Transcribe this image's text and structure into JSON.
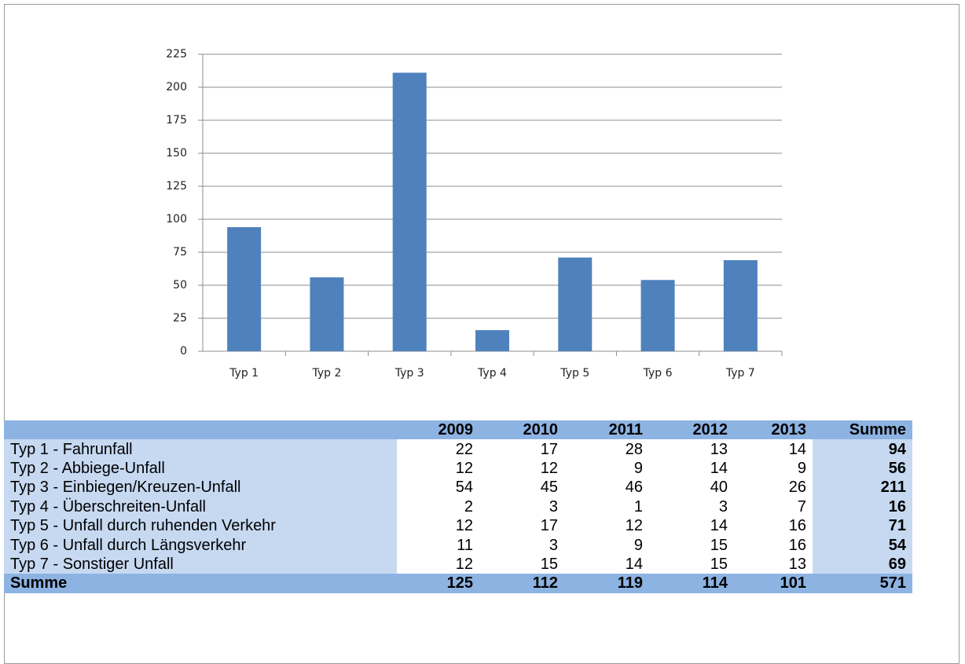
{
  "chart_data": {
    "type": "bar",
    "categories": [
      "Typ 1",
      "Typ 2",
      "Typ 3",
      "Typ 4",
      "Typ 5",
      "Typ 6",
      "Typ 7"
    ],
    "values": [
      94,
      56,
      211,
      16,
      71,
      54,
      69
    ],
    "color": "#4f81bd",
    "ylim": [
      0,
      225
    ],
    "yticks": [
      0,
      25,
      50,
      75,
      100,
      125,
      150,
      175,
      200,
      225
    ],
    "grid": true
  },
  "table": {
    "columns": [
      "2009",
      "2010",
      "2011",
      "2012",
      "2013",
      "Summe"
    ],
    "rows": [
      {
        "label": "Typ 1 - Fahrunfall",
        "values": [
          22,
          17,
          28,
          13,
          14
        ],
        "total": 94
      },
      {
        "label": "Typ 2 - Abbiege-Unfall",
        "values": [
          12,
          12,
          9,
          14,
          9
        ],
        "total": 56
      },
      {
        "label": "Typ 3 - Einbiegen/Kreuzen-Unfall",
        "values": [
          54,
          45,
          46,
          40,
          26
        ],
        "total": 211
      },
      {
        "label": "Typ 4 - Überschreiten-Unfall",
        "values": [
          2,
          3,
          1,
          3,
          7
        ],
        "total": 16
      },
      {
        "label": "Typ 5 - Unfall durch ruhenden Verkehr",
        "values": [
          12,
          17,
          12,
          14,
          16
        ],
        "total": 71
      },
      {
        "label": "Typ 6 - Unfall durch Längsverkehr",
        "values": [
          11,
          3,
          9,
          15,
          16
        ],
        "total": 54
      },
      {
        "label": "Typ 7 - Sonstiger Unfall",
        "values": [
          12,
          15,
          14,
          15,
          13
        ],
        "total": 69
      }
    ],
    "footer": {
      "label": "Summe",
      "values": [
        125,
        112,
        119,
        114,
        101
      ],
      "total": 571
    }
  }
}
